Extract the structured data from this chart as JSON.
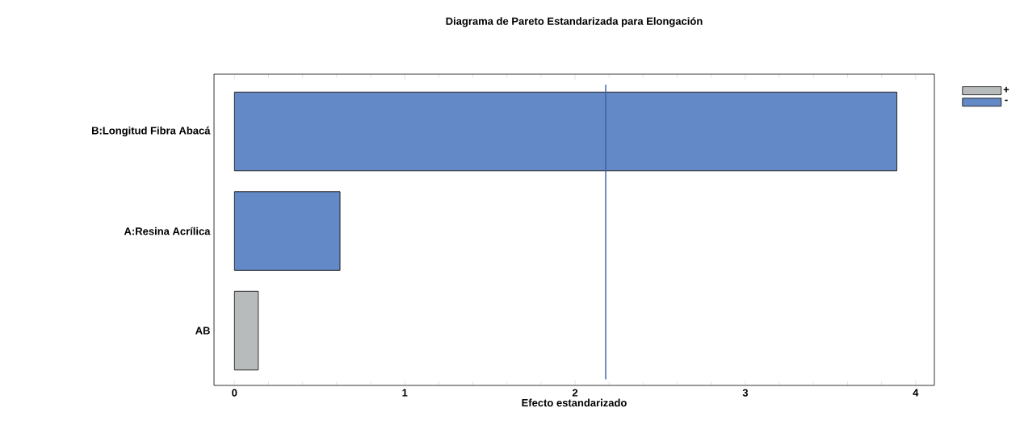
{
  "chart_data": {
    "type": "bar",
    "orientation": "horizontal",
    "title": "Diagrama de Pareto Estandarizada para Elongación",
    "xlabel": "Efecto estandarizado",
    "categories": [
      "B:Longitud Fibra Abacá",
      "A:Resina Acrílica",
      "AB"
    ],
    "series": [
      {
        "name": "+",
        "color": "#b8bbbb",
        "values": [
          null,
          null,
          0.14
        ]
      },
      {
        "name": "-",
        "color": "#6389c6",
        "values": [
          3.89,
          0.62,
          null
        ]
      }
    ],
    "xlim": [
      -0.12,
      4.11
    ],
    "xticks": [
      0,
      1,
      2,
      3,
      4
    ],
    "grid": false,
    "legend": "top right",
    "ref_lines": [
      {
        "axis": "x",
        "value": 2.18,
        "color": "#3b5dab"
      }
    ]
  }
}
